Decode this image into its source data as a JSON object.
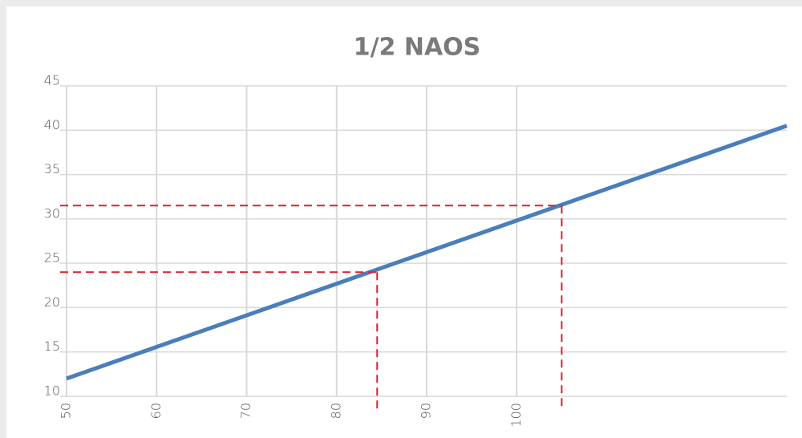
{
  "chart_data": {
    "type": "line",
    "title": "1/2 NAOS",
    "x": [
      50,
      130
    ],
    "series": [
      {
        "name": "1/2 NAOS",
        "color": "#4a7ebb",
        "values": [
          12,
          40.5
        ]
      }
    ],
    "markers": [
      {
        "x": 84.5,
        "y": 24
      },
      {
        "x": 105,
        "y": 31.5
      }
    ],
    "marker_color": "#d9232e",
    "xlim": [
      50,
      130
    ],
    "xticks": [
      50,
      60,
      70,
      80,
      90,
      100
    ],
    "ylim": [
      10,
      45
    ],
    "yticks": [
      10,
      15,
      20,
      25,
      30,
      35,
      40,
      45
    ],
    "grid": true
  }
}
